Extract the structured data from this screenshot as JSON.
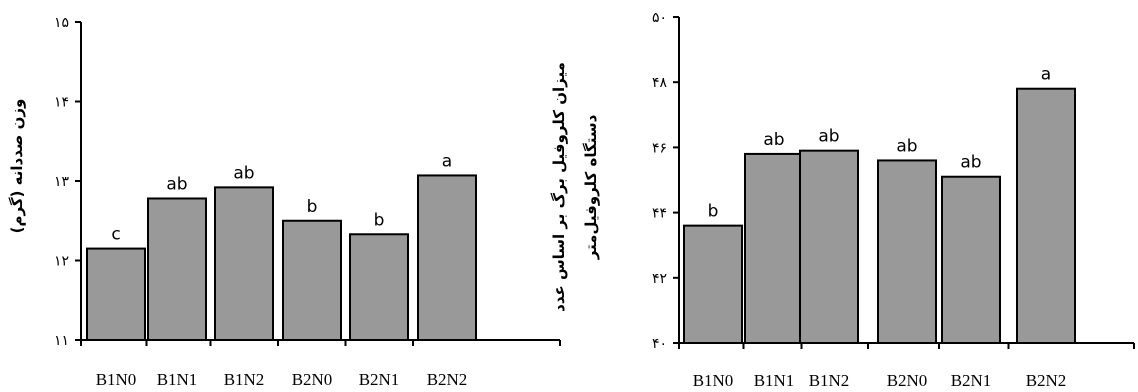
{
  "chart_data": [
    {
      "type": "bar",
      "categories": [
        "B1N0",
        "B1N1",
        "B1N2",
        "B2N0",
        "B2N1",
        "B2N2"
      ],
      "values": [
        12.15,
        12.78,
        12.92,
        12.5,
        12.33,
        13.07
      ],
      "letters": [
        "c",
        "ab",
        "ab",
        "b",
        "b",
        "a"
      ],
      "ylabel": "وزن صددانه (گرم)",
      "ylim": [
        11,
        15
      ],
      "yticks": [
        "۱۱",
        "۱۲",
        "۱۳",
        "۱۴",
        "۱۵"
      ],
      "bar_color": "#999999"
    },
    {
      "type": "bar",
      "categories": [
        "B1N0",
        "B1N1",
        "B1N2",
        "B2N0",
        "B2N1",
        "B2N2"
      ],
      "values": [
        43.6,
        45.8,
        45.9,
        45.6,
        45.1,
        47.8
      ],
      "letters": [
        "b",
        "ab",
        "ab",
        "ab",
        "ab",
        "a"
      ],
      "ylabel_lines": [
        "میزان کلروفیل برگ بر اساس عدد",
        "دستگاه کلروفیل‌متر"
      ],
      "ylim": [
        40,
        50
      ],
      "yticks": [
        "۴۰",
        "۴۲",
        "۴۴",
        "۴۶",
        "۴۸",
        "۵۰"
      ],
      "bar_color": "#999999"
    }
  ]
}
